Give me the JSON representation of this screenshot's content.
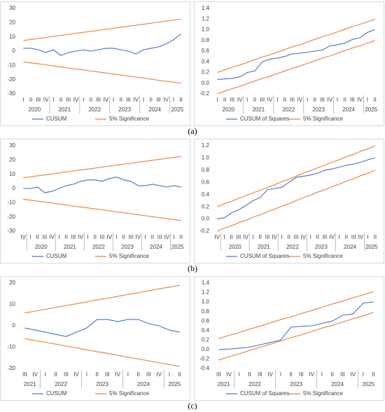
{
  "panel_labels": [
    "(a)",
    "(b)",
    "(c)"
  ],
  "chart_data": [
    {
      "type": "line",
      "categories": [
        "I",
        "II",
        "III",
        "IV",
        "I",
        "II",
        "III",
        "IV",
        "I",
        "II",
        "III",
        "IV",
        "I",
        "II",
        "III",
        "IV",
        "I",
        "II",
        "III",
        "IV",
        "I",
        "II"
      ],
      "years": [
        "2020",
        null,
        null,
        null,
        "2021",
        null,
        null,
        null,
        "2022",
        null,
        null,
        null,
        "2023",
        null,
        null,
        null,
        "2024",
        null,
        null,
        null,
        "2025",
        null
      ],
      "ylim": [
        -30,
        30
      ],
      "yticks": [
        -30,
        -20,
        -10,
        0,
        10,
        20,
        30
      ],
      "grid": false,
      "series": [
        {
          "name": "CUSUM",
          "color": "#4472c4",
          "values": [
            2,
            2,
            1,
            -1,
            1,
            -3,
            -1,
            0,
            1,
            0,
            1,
            2,
            2,
            1,
            0,
            -2,
            1,
            2,
            3,
            5,
            8,
            12
          ]
        },
        {
          "name": "5% Significance",
          "color": "#ed7d31",
          "values": [
            7.5,
            8.2,
            8.9,
            9.6,
            10.4,
            11.1,
            11.8,
            12.5,
            13.2,
            13.9,
            14.6,
            15.4,
            16.1,
            16.8,
            17.5,
            18.2,
            18.9,
            19.6,
            20.4,
            21.1,
            21.8,
            22.5
          ]
        },
        {
          "color": "#ed7d31",
          "values": [
            -7.5,
            -8.2,
            -8.9,
            -9.6,
            -10.4,
            -11.1,
            -11.8,
            -12.5,
            -13.2,
            -13.9,
            -14.6,
            -15.4,
            -16.1,
            -16.8,
            -17.5,
            -18.2,
            -18.9,
            -19.6,
            -20.4,
            -21.1,
            -21.8,
            -22.5
          ]
        }
      ]
    },
    {
      "type": "line",
      "categories": [
        "I",
        "II",
        "III",
        "IV",
        "I",
        "II",
        "III",
        "IV",
        "I",
        "II",
        "III",
        "IV",
        "I",
        "II",
        "III",
        "IV",
        "I",
        "II",
        "III",
        "IV",
        "I",
        "II"
      ],
      "years": [
        "2020",
        null,
        null,
        null,
        "2021",
        null,
        null,
        null,
        "2022",
        null,
        null,
        null,
        "2023",
        null,
        null,
        null,
        "2024",
        null,
        null,
        null,
        "2025",
        null
      ],
      "ylim": [
        -0.2,
        1.4
      ],
      "yticks": [
        -0.2,
        {
          "value": 0,
          "label": "0.0"
        },
        0.2,
        0.4,
        0.6,
        0.8,
        {
          "value": 1,
          "label": "1.0"
        },
        1.2,
        1.4
      ],
      "grid": false,
      "series": [
        {
          "name": "CUSUM of Squares",
          "color": "#4472c4",
          "values": [
            0.07,
            0.08,
            0.09,
            0.12,
            0.2,
            0.23,
            0.4,
            0.45,
            0.47,
            0.5,
            0.55,
            0.56,
            0.58,
            0.6,
            0.62,
            0.7,
            0.72,
            0.75,
            0.82,
            0.85,
            0.95,
            1.0
          ]
        },
        {
          "name": "5% Significance",
          "color": "#ed7d31",
          "values": [
            0.2,
            0.25,
            0.3,
            0.34,
            0.39,
            0.44,
            0.49,
            0.53,
            0.58,
            0.63,
            0.68,
            0.72,
            0.77,
            0.82,
            0.87,
            0.91,
            0.96,
            1.01,
            1.06,
            1.1,
            1.15,
            1.2
          ]
        },
        {
          "color": "#ed7d31",
          "values": [
            -0.2,
            -0.15,
            -0.1,
            -0.06,
            -0.01,
            0.04,
            0.09,
            0.13,
            0.18,
            0.23,
            0.28,
            0.32,
            0.37,
            0.42,
            0.47,
            0.51,
            0.56,
            0.61,
            0.66,
            0.7,
            0.75,
            0.8
          ]
        }
      ]
    },
    {
      "type": "line",
      "categories": [
        "IV",
        "I",
        "II",
        "III",
        "IV",
        "I",
        "II",
        "III",
        "IV",
        "I",
        "II",
        "III",
        "IV",
        "I",
        "II",
        "III",
        "IV",
        "I",
        "II",
        "III",
        "IV",
        "I",
        "II"
      ],
      "years": [
        null,
        "2020",
        null,
        null,
        null,
        "2021",
        null,
        null,
        null,
        "2022",
        null,
        null,
        null,
        "2023",
        null,
        null,
        null,
        "2024",
        null,
        null,
        null,
        "2025",
        null
      ],
      "ylim": [
        -30,
        30
      ],
      "yticks": [
        -30,
        -20,
        -10,
        0,
        10,
        20,
        30
      ],
      "grid": false,
      "series": [
        {
          "name": "CUSUM",
          "color": "#4472c4",
          "values": [
            0,
            0,
            1,
            -3,
            -2,
            0,
            2,
            3,
            5,
            6,
            6,
            5,
            7,
            8,
            6,
            5,
            2,
            2,
            3,
            2,
            1,
            2,
            1
          ]
        },
        {
          "name": "5% Significance",
          "color": "#ed7d31",
          "values": [
            7.5,
            8.2,
            8.9,
            9.5,
            10.2,
            10.9,
            11.6,
            12.3,
            13.0,
            13.6,
            14.3,
            15,
            15.7,
            16.4,
            17.1,
            17.7,
            18.4,
            19.1,
            19.8,
            20.5,
            21.1,
            21.8,
            22.5
          ]
        },
        {
          "color": "#ed7d31",
          "values": [
            -7.5,
            -8.2,
            -8.9,
            -9.5,
            -10.2,
            -10.9,
            -11.6,
            -12.3,
            -13.0,
            -13.6,
            -14.3,
            -15,
            -15.7,
            -16.4,
            -17.1,
            -17.7,
            -18.4,
            -19.1,
            -19.8,
            -20.5,
            -21.1,
            -21.8,
            -22.5
          ]
        }
      ]
    },
    {
      "type": "line",
      "categories": [
        "IV",
        "I",
        "II",
        "III",
        "IV",
        "I",
        "II",
        "III",
        "IV",
        "I",
        "II",
        "III",
        "IV",
        "I",
        "II",
        "III",
        "IV",
        "I",
        "II",
        "III",
        "IV",
        "I",
        "II"
      ],
      "years": [
        null,
        "2020",
        null,
        null,
        null,
        "2021",
        null,
        null,
        null,
        "2022",
        null,
        null,
        null,
        "2023",
        null,
        null,
        null,
        "2024",
        null,
        null,
        null,
        "2025",
        null
      ],
      "ylim": [
        -0.2,
        1.2
      ],
      "yticks": [
        -0.2,
        {
          "value": 0,
          "label": "0.0"
        },
        0.2,
        0.4,
        0.6,
        0.8,
        {
          "value": 1,
          "label": "1.0"
        },
        1.2
      ],
      "grid": false,
      "series": [
        {
          "name": "CUSUM of Squares",
          "color": "#4472c4",
          "values": [
            0,
            0.02,
            0.1,
            0.15,
            0.22,
            0.3,
            0.35,
            0.48,
            0.5,
            0.52,
            0.6,
            0.68,
            0.7,
            0.72,
            0.75,
            0.8,
            0.82,
            0.85,
            0.88,
            0.9,
            0.93,
            0.97,
            1.0
          ]
        },
        {
          "name": "5% Significance",
          "color": "#ed7d31",
          "values": [
            0.2,
            0.25,
            0.29,
            0.34,
            0.38,
            0.43,
            0.47,
            0.52,
            0.56,
            0.61,
            0.65,
            0.7,
            0.75,
            0.79,
            0.84,
            0.88,
            0.93,
            0.97,
            1.02,
            1.06,
            1.11,
            1.15,
            1.2
          ]
        },
        {
          "color": "#ed7d31",
          "values": [
            -0.2,
            -0.15,
            -0.11,
            -0.06,
            -0.02,
            0.03,
            0.07,
            0.12,
            0.16,
            0.21,
            0.25,
            0.3,
            0.35,
            0.39,
            0.44,
            0.48,
            0.53,
            0.57,
            0.62,
            0.66,
            0.71,
            0.75,
            0.8
          ]
        }
      ]
    },
    {
      "type": "line",
      "categories": [
        "III",
        "IV",
        "I",
        "II",
        "III",
        "IV",
        "I",
        "II",
        "III",
        "IV",
        "I",
        "II",
        "III",
        "IV",
        "I",
        "II"
      ],
      "years": [
        "2021",
        null,
        "2022",
        null,
        null,
        null,
        "2023",
        null,
        null,
        null,
        "2024",
        null,
        null,
        null,
        "2025",
        null
      ],
      "ylim": [
        -20,
        20
      ],
      "yticks": [
        -20,
        -10,
        0,
        10,
        20
      ],
      "grid": false,
      "series": [
        {
          "name": "CUSUM",
          "color": "#4472c4",
          "values": [
            -1,
            -2,
            -3,
            -4,
            -5,
            -3,
            -1,
            3,
            3,
            2,
            3,
            3,
            1,
            0,
            -2,
            -3
          ]
        },
        {
          "name": "5% Significance",
          "color": "#ed7d31",
          "values": [
            6,
            6.9,
            7.7,
            8.6,
            9.5,
            10.3,
            11.2,
            12.1,
            12.9,
            13.8,
            14.7,
            15.5,
            16.4,
            17.3,
            18.1,
            19
          ]
        },
        {
          "color": "#ed7d31",
          "values": [
            -6,
            -6.9,
            -7.7,
            -8.6,
            -9.5,
            -10.3,
            -11.2,
            -12.1,
            -12.9,
            -13.8,
            -14.7,
            -15.5,
            -16.4,
            -17.3,
            -18.1,
            -19
          ]
        }
      ]
    },
    {
      "type": "line",
      "categories": [
        "III",
        "IV",
        "I",
        "II",
        "III",
        "IV",
        "I",
        "II",
        "III",
        "IV",
        "I",
        "II",
        "III",
        "IV",
        "I",
        "II"
      ],
      "years": [
        "2021",
        null,
        "2022",
        null,
        null,
        null,
        "2023",
        null,
        null,
        null,
        "2024",
        null,
        null,
        null,
        "2025",
        null
      ],
      "ylim": [
        -0.4,
        1.4
      ],
      "yticks": [
        -0.4,
        -0.2,
        {
          "value": 0,
          "label": "0.0"
        },
        0.2,
        0.4,
        0.6,
        0.8,
        {
          "value": 1,
          "label": "1.0"
        },
        1.2,
        1.4
      ],
      "grid": false,
      "series": [
        {
          "name": "CUSUM of Squares",
          "color": "#4472c4",
          "values": [
            0,
            0.01,
            0.03,
            0.05,
            0.1,
            0.15,
            0.2,
            0.47,
            0.49,
            0.5,
            0.55,
            0.6,
            0.72,
            0.75,
            0.98,
            1.0
          ]
        },
        {
          "name": "5% Significance",
          "color": "#ed7d31",
          "values": [
            0.23,
            0.3,
            0.36,
            0.43,
            0.49,
            0.56,
            0.63,
            0.69,
            0.76,
            0.82,
            0.89,
            0.96,
            1.02,
            1.09,
            1.15,
            1.22
          ]
        },
        {
          "color": "#ed7d31",
          "values": [
            -0.22,
            -0.15,
            -0.09,
            -0.02,
            0.05,
            0.11,
            0.18,
            0.25,
            0.31,
            0.38,
            0.45,
            0.51,
            0.58,
            0.65,
            0.71,
            0.78
          ]
        }
      ]
    }
  ]
}
